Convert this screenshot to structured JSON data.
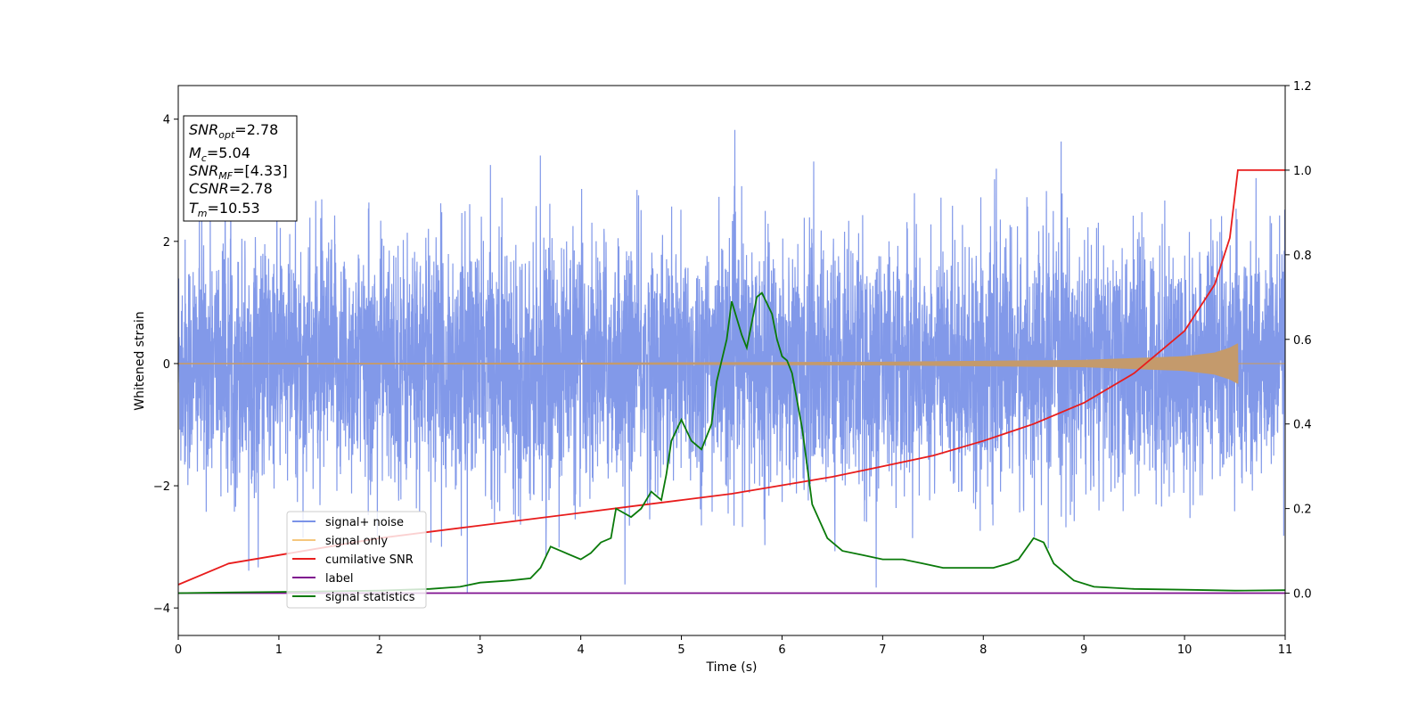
{
  "chart_data": {
    "type": "line",
    "xlabel": "Time (s)",
    "ylabel": "Whitened strain",
    "xlim": [
      0,
      11
    ],
    "ylim": [
      -4.45,
      4.55
    ],
    "y2lim": [
      -0.1,
      1.2
    ],
    "x_ticks": [
      "0",
      "1",
      "2",
      "3",
      "4",
      "5",
      "6",
      "7",
      "8",
      "9",
      "10",
      "11"
    ],
    "y_ticks": [
      "−4",
      "−2",
      "0",
      "2",
      "4"
    ],
    "y2_ticks": [
      "0.0",
      "0.2",
      "0.4",
      "0.6",
      "0.8",
      "1.0",
      "1.2"
    ],
    "info_box": {
      "snr_opt": {
        "sym": "SNR",
        "sub": "opt",
        "rest": "=2.78"
      },
      "mc": {
        "sym": "M",
        "sub": "c",
        "rest": "=5.04"
      },
      "snr_mf": {
        "sym": "SNR",
        "sub": "MF",
        "rest": "=[4.33]"
      },
      "csnr": {
        "sym": "CSNR",
        "sub": "",
        "rest": "=2.78"
      },
      "tm": {
        "sym": "T",
        "sub": "m",
        "rest": "=10.53"
      }
    },
    "legend": {
      "position": "lower left",
      "entries": [
        {
          "label": "signal+ noise",
          "color": "#7b93e8"
        },
        {
          "label": "signal only",
          "color": "#f5c77e"
        },
        {
          "label": "cumilative SNR",
          "color": "#e81c1c"
        },
        {
          "label": "label",
          "color": "#7f0f8f"
        },
        {
          "label": "signal statistics",
          "color": "#0a7a0a"
        }
      ]
    },
    "series": [
      {
        "name": "signal+ noise",
        "axis": "left",
        "color": "#7b93e8",
        "description_stats": {
          "x_range": [
            0,
            11
          ],
          "approx_std": 1.0,
          "approx_range": [
            -4.0,
            4.2
          ]
        }
      },
      {
        "name": "signal only",
        "axis": "left",
        "color": "#c49a6c",
        "envelope_points": {
          "x": [
            0,
            4,
            7,
            9,
            10,
            10.3,
            10.45,
            10.53
          ],
          "amp": [
            0.01,
            0.015,
            0.03,
            0.06,
            0.12,
            0.18,
            0.26,
            0.33
          ]
        }
      },
      {
        "name": "cumilative SNR",
        "axis": "right",
        "color": "#e81c1c",
        "x": [
          0,
          0.5,
          1,
          1.5,
          2,
          2.5,
          3,
          3.5,
          4,
          4.5,
          5,
          5.5,
          6,
          6.5,
          7,
          7.5,
          8,
          8.5,
          9,
          9.5,
          10,
          10.3,
          10.45,
          10.53,
          11
        ],
        "values": [
          0.02,
          0.07,
          0.09,
          0.11,
          0.13,
          0.145,
          0.16,
          0.175,
          0.19,
          0.205,
          0.22,
          0.235,
          0.255,
          0.275,
          0.3,
          0.325,
          0.36,
          0.4,
          0.45,
          0.52,
          0.62,
          0.73,
          0.84,
          1.0,
          1.0
        ]
      },
      {
        "name": "label",
        "axis": "right",
        "color": "#7f0f8f",
        "x": [
          0,
          11
        ],
        "values": [
          0.0,
          0.0
        ]
      },
      {
        "name": "signal statistics",
        "axis": "right",
        "color": "#0a7a0a",
        "x": [
          0,
          1,
          2,
          2.5,
          2.8,
          3.0,
          3.3,
          3.5,
          3.6,
          3.7,
          3.8,
          4.0,
          4.1,
          4.2,
          4.3,
          4.35,
          4.5,
          4.6,
          4.7,
          4.8,
          4.85,
          4.9,
          5.0,
          5.1,
          5.2,
          5.3,
          5.35,
          5.45,
          5.5,
          5.6,
          5.65,
          5.75,
          5.8,
          5.9,
          5.95,
          6.0,
          6.05,
          6.1,
          6.2,
          6.25,
          6.3,
          6.45,
          6.6,
          6.8,
          7.0,
          7.2,
          7.4,
          7.6,
          7.8,
          7.9,
          8.1,
          8.25,
          8.35,
          8.5,
          8.6,
          8.7,
          8.9,
          9.1,
          9.5,
          10,
          10.5,
          11
        ],
        "values": [
          0.0,
          0.003,
          0.006,
          0.01,
          0.015,
          0.025,
          0.03,
          0.035,
          0.06,
          0.11,
          0.1,
          0.08,
          0.095,
          0.12,
          0.13,
          0.2,
          0.18,
          0.2,
          0.24,
          0.22,
          0.28,
          0.36,
          0.41,
          0.36,
          0.34,
          0.4,
          0.5,
          0.6,
          0.69,
          0.61,
          0.58,
          0.7,
          0.71,
          0.66,
          0.6,
          0.56,
          0.55,
          0.52,
          0.39,
          0.3,
          0.21,
          0.13,
          0.1,
          0.09,
          0.08,
          0.08,
          0.07,
          0.06,
          0.06,
          0.06,
          0.06,
          0.07,
          0.08,
          0.13,
          0.12,
          0.07,
          0.03,
          0.015,
          0.01,
          0.008,
          0.006,
          0.007
        ]
      }
    ]
  }
}
